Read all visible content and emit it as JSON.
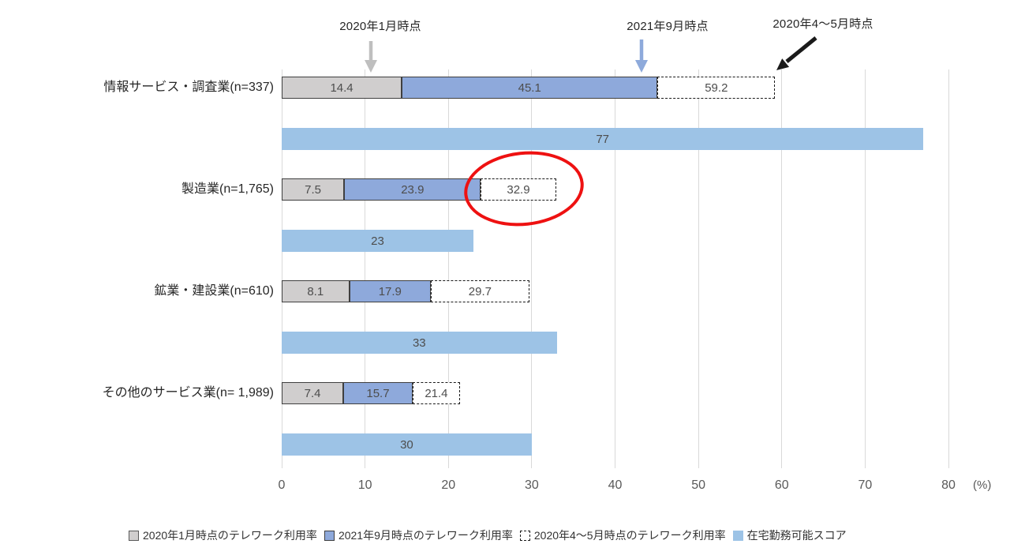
{
  "chart_data": {
    "type": "bar",
    "orientation": "horizontal",
    "title": "",
    "x_axis": {
      "ticks": [
        0,
        10,
        20,
        30,
        40,
        50,
        60,
        70,
        80
      ],
      "max": 80,
      "unit_label": "(%)"
    },
    "grid": "vertical-on",
    "annotations": [
      {
        "label": "2020年1月時点",
        "arrow_color": "#bfbfbf",
        "points_to_value": 10.7
      },
      {
        "label": "2021年9月時点",
        "arrow_color": "#8eaadb",
        "points_to_value": 43.2
      },
      {
        "label": "2020年4～5月時点",
        "arrow_color": "#1a1a1a",
        "points_to_value": 59.2
      }
    ],
    "series_legend": [
      {
        "label": "2020年1月時点のテレワーク利用率",
        "swatch": "jan"
      },
      {
        "label": "2021年9月時点のテレワーク利用率",
        "swatch": "sep"
      },
      {
        "label": "2020年4～5月時点のテレワーク利用率",
        "swatch": "spring"
      },
      {
        "label": "在宅勤務可能スコア",
        "swatch": "score"
      }
    ],
    "rows": [
      {
        "category": "情報サービス・調査業(n=337)",
        "jan2020": 14.4,
        "sep2021": 45.1,
        "spring2020": 59.2,
        "wfh_score": 77,
        "highlighted": false
      },
      {
        "category": "製造業(n=1,765)",
        "jan2020": 7.5,
        "sep2021": 23.9,
        "spring2020": 32.9,
        "wfh_score": 23,
        "highlighted": true
      },
      {
        "category": "鉱業・建設業(n=610)",
        "jan2020": 8.1,
        "sep2021": 17.9,
        "spring2020": 29.7,
        "wfh_score": 33,
        "highlighted": false
      },
      {
        "category": "その他のサービス業(n= 1,989)",
        "jan2020": 7.4,
        "sep2021": 15.7,
        "spring2020": 21.4,
        "wfh_score": 30,
        "highlighted": false
      }
    ],
    "colors": {
      "jan_fill": "#d0cece",
      "sep_fill": "#8ea9db",
      "spring_fill": "#ffffff",
      "score_fill": "#9dc3e6",
      "bar_border": "#3f3f3f",
      "dashed_border": "#1a1a1a",
      "gridline": "#d9d9d9",
      "value_text": "#4d4d4d",
      "highlight_ellipse": "#ee1111"
    }
  }
}
